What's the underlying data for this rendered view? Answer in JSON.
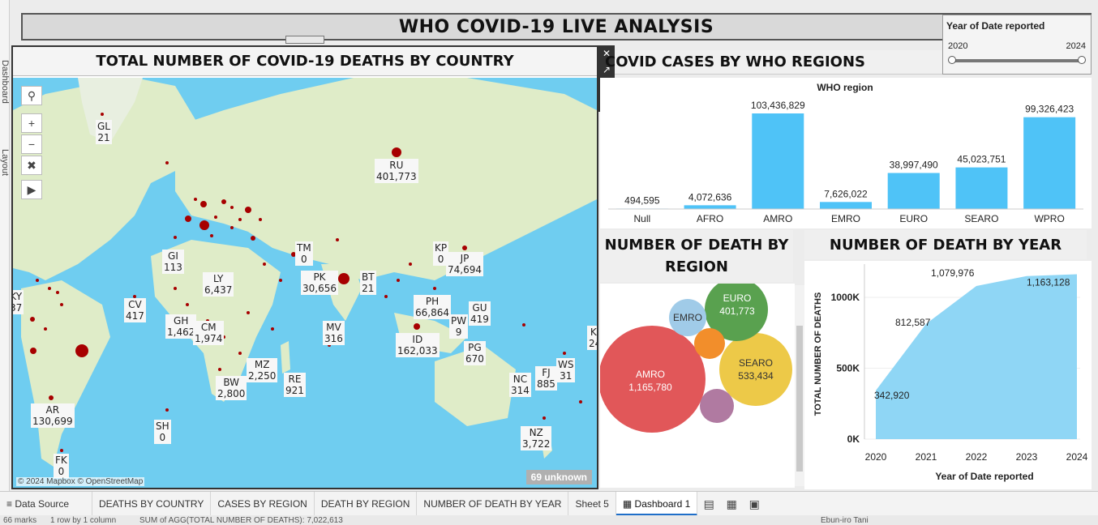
{
  "dashboard": {
    "title": "WHO COVID-19 LIVE ANALYSIS",
    "left_tabs": [
      "Dashboard",
      "Layout"
    ]
  },
  "map": {
    "title": "TOTAL NUMBER OF COVID-19 DEATHS BY COUNTRY",
    "attribution": "© 2024 Mapbox © OpenStreetMap",
    "unknown_label": "69 unknown",
    "tool_icons": [
      "search-icon",
      "zoom-in-icon",
      "zoom-out-icon",
      "reset-map-icon",
      "play-icon"
    ],
    "labels": [
      {
        "code": "GL",
        "value": "21"
      },
      {
        "code": "RU",
        "value": "401,773"
      },
      {
        "code": "TM",
        "value": "0"
      },
      {
        "code": "KP",
        "value": "0"
      },
      {
        "code": "JP",
        "value": "74,694"
      },
      {
        "code": "GI",
        "value": "113"
      },
      {
        "code": "LY",
        "value": "6,437"
      },
      {
        "code": "PK",
        "value": "30,656"
      },
      {
        "code": "BT",
        "value": "21"
      },
      {
        "code": "CV",
        "value": "417"
      },
      {
        "code": "GH",
        "value": "1,462"
      },
      {
        "code": "CM",
        "value": "1,974"
      },
      {
        "code": "PH",
        "value": "66,864"
      },
      {
        "code": "PW",
        "value": "9"
      },
      {
        "code": "GU",
        "value": "419"
      },
      {
        "code": "MV",
        "value": "316"
      },
      {
        "code": "ID",
        "value": "162,033"
      },
      {
        "code": "PG",
        "value": "670"
      },
      {
        "code": "MZ",
        "value": "2,250"
      },
      {
        "code": "RE",
        "value": "921"
      },
      {
        "code": "BW",
        "value": "2,800"
      },
      {
        "code": "NC",
        "value": "314"
      },
      {
        "code": "FJ",
        "value": "885"
      },
      {
        "code": "WS",
        "value": "31"
      },
      {
        "code": "AR",
        "value": "130,699"
      },
      {
        "code": "SH",
        "value": "0"
      },
      {
        "code": "NZ",
        "value": "3,722"
      },
      {
        "code": "FK",
        "value": "0"
      },
      {
        "code": "KY",
        "value": "37"
      },
      {
        "code": "KI",
        "value": "24"
      }
    ]
  },
  "cases": {
    "title": "COVID CASES BY WHO REGIONS",
    "header": "WHO region"
  },
  "year_filter": {
    "title": "Year of Date reported",
    "min": "2020",
    "max": "2024"
  },
  "region_deaths": {
    "title": "NUMBER OF DEATH BY REGION",
    "bubbles": [
      {
        "name": "AMRO",
        "value": "1,165,780",
        "color": "#e15759"
      },
      {
        "name": "SEARO",
        "value": "533,434",
        "color": "#edc948"
      },
      {
        "name": "EURO",
        "value": "401,773",
        "color": "#59a14f"
      },
      {
        "name": "EMRO",
        "value": "",
        "color": "#a0cbe8"
      },
      {
        "name": "",
        "value": "",
        "color": "#f28e2b"
      },
      {
        "name": "",
        "value": "",
        "color": "#b07aa1"
      }
    ]
  },
  "year_deaths": {
    "title": "NUMBER OF DEATH BY YEAR"
  },
  "chart_data": [
    {
      "type": "bar",
      "title": "COVID CASES BY WHO REGIONS",
      "xlabel": "WHO region",
      "categories": [
        "Null",
        "AFRO",
        "AMRO",
        "EMRO",
        "EURO",
        "SEARO",
        "WPRO"
      ],
      "values": [
        494595,
        4072636,
        103436829,
        7626022,
        38997490,
        45023751,
        99326423
      ],
      "value_labels": [
        "494,595",
        "4,072,636",
        "103,436,829",
        "7,626,022",
        "38,997,490",
        "45,023,751",
        "99,326,423"
      ],
      "color": "#4fc3f7"
    },
    {
      "type": "area",
      "title": "NUMBER OF DEATH BY YEAR",
      "xlabel": "Year of Date reported",
      "ylabel": "TOTAL NUMBER OF DEATHS",
      "x": [
        "2020",
        "2021",
        "2022",
        "2023",
        "2024"
      ],
      "values": [
        342920,
        812587,
        1079976,
        1150000,
        1163128
      ],
      "point_labels": [
        "342,920",
        "812,587",
        "1,079,976",
        "",
        "1,163,128"
      ],
      "yticks": [
        "0K",
        "500K",
        "1000K"
      ],
      "ylim": [
        0,
        1200000
      ],
      "color": "#8fd6f5"
    }
  ],
  "tabs": {
    "data_source": "Data Source",
    "sheets": [
      "DEATHS BY COUNTRY",
      "CASES BY REGION",
      "DEATH BY REGION",
      "NUMBER OF DEATH BY YEAR",
      "Sheet 5"
    ],
    "active": "Dashboard 1",
    "new_icons": [
      "new-worksheet-icon",
      "new-dashboard-icon",
      "new-story-icon"
    ]
  },
  "status": {
    "marks": "66 marks",
    "rows": "1 row by 1 column",
    "sum": "SUM of AGG(TOTAL NUMBER OF DEATHS): 7,022,613",
    "user": "Ebun-iro Tani"
  }
}
